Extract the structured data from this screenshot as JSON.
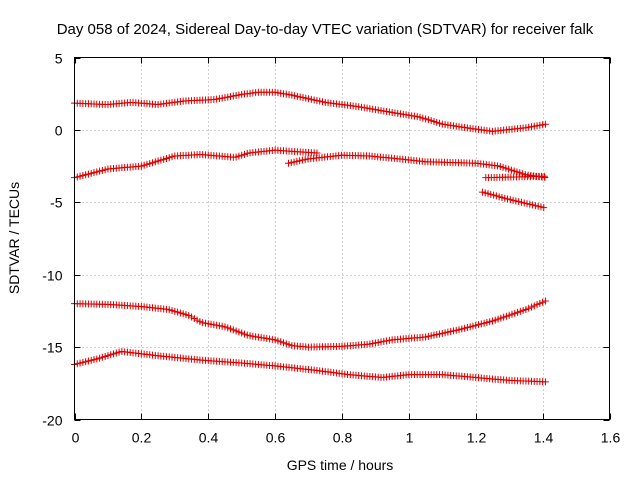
{
  "chart_data": {
    "type": "scatter",
    "title": "Day 058 of 2024, Sidereal Day-to-day VTEC variation (SDTVAR) for receiver falk",
    "xlabel": "GPS time / hours",
    "ylabel": "SDTVAR / TECUs",
    "xlim": [
      0,
      1.6
    ],
    "ylim": [
      -20,
      5
    ],
    "xticks": [
      0,
      0.2,
      0.4,
      0.6,
      0.8,
      1,
      1.2,
      1.4,
      1.6
    ],
    "xtick_labels": [
      "0",
      "0.2",
      "0.4",
      "0.6",
      "0.8",
      "1",
      "1.2",
      "1.4",
      "1.6"
    ],
    "yticks": [
      5,
      0,
      -5,
      -10,
      -15,
      -20
    ],
    "ytick_labels": [
      "5",
      "0",
      "-5",
      "-10",
      "-15",
      "-20"
    ],
    "grid": true,
    "marker": "plus",
    "marker_color": "#e00000",
    "series": [
      {
        "name": "track-1",
        "x_start": 0.0,
        "x_end": 1.41,
        "knots": [
          [
            0.0,
            1.85
          ],
          [
            0.1,
            1.75
          ],
          [
            0.17,
            1.9
          ],
          [
            0.25,
            1.75
          ],
          [
            0.33,
            2.0
          ],
          [
            0.42,
            2.1
          ],
          [
            0.5,
            2.45
          ],
          [
            0.55,
            2.6
          ],
          [
            0.6,
            2.6
          ],
          [
            0.65,
            2.4
          ],
          [
            0.75,
            1.9
          ],
          [
            0.85,
            1.6
          ],
          [
            0.95,
            1.2
          ],
          [
            1.03,
            0.9
          ],
          [
            1.1,
            0.4
          ],
          [
            1.2,
            0.05
          ],
          [
            1.25,
            -0.1
          ],
          [
            1.35,
            0.15
          ],
          [
            1.41,
            0.4
          ]
        ]
      },
      {
        "name": "track-2",
        "x_start": 0.0,
        "x_end": 0.73,
        "knots": [
          [
            0.0,
            -3.3
          ],
          [
            0.05,
            -3.0
          ],
          [
            0.1,
            -2.7
          ],
          [
            0.2,
            -2.5
          ],
          [
            0.3,
            -1.8
          ],
          [
            0.38,
            -1.7
          ],
          [
            0.48,
            -1.9
          ],
          [
            0.52,
            -1.6
          ],
          [
            0.6,
            -1.4
          ],
          [
            0.66,
            -1.5
          ],
          [
            0.73,
            -1.6
          ]
        ]
      },
      {
        "name": "track-3",
        "x_start": 0.64,
        "x_end": 1.41,
        "knots": [
          [
            0.64,
            -2.3
          ],
          [
            0.7,
            -2.0
          ],
          [
            0.8,
            -1.75
          ],
          [
            0.88,
            -1.8
          ],
          [
            0.97,
            -2.0
          ],
          [
            1.05,
            -2.2
          ],
          [
            1.12,
            -2.25
          ],
          [
            1.2,
            -2.3
          ],
          [
            1.27,
            -2.5
          ],
          [
            1.35,
            -3.1
          ],
          [
            1.41,
            -3.3
          ]
        ]
      },
      {
        "name": "track-4",
        "x_start": 1.23,
        "x_end": 1.41,
        "knots": [
          [
            1.23,
            -3.3
          ],
          [
            1.41,
            -3.2
          ]
        ]
      },
      {
        "name": "track-5",
        "x_start": 1.22,
        "x_end": 1.41,
        "knots": [
          [
            1.22,
            -4.3
          ],
          [
            1.3,
            -4.8
          ],
          [
            1.41,
            -5.4
          ]
        ]
      },
      {
        "name": "track-6",
        "x_start": 0.0,
        "x_end": 1.41,
        "knots": [
          [
            0.0,
            -12.0
          ],
          [
            0.1,
            -12.05
          ],
          [
            0.2,
            -12.2
          ],
          [
            0.28,
            -12.4
          ],
          [
            0.34,
            -12.8
          ],
          [
            0.38,
            -13.3
          ],
          [
            0.45,
            -13.6
          ],
          [
            0.52,
            -14.2
          ],
          [
            0.6,
            -14.5
          ],
          [
            0.65,
            -14.9
          ],
          [
            0.7,
            -15.0
          ],
          [
            0.8,
            -14.95
          ],
          [
            0.88,
            -14.8
          ],
          [
            0.95,
            -14.5
          ],
          [
            1.05,
            -14.3
          ],
          [
            1.15,
            -13.8
          ],
          [
            1.25,
            -13.2
          ],
          [
            1.35,
            -12.4
          ],
          [
            1.41,
            -11.8
          ]
        ]
      },
      {
        "name": "track-7",
        "x_start": 0.0,
        "x_end": 1.41,
        "knots": [
          [
            0.0,
            -16.2
          ],
          [
            0.07,
            -15.8
          ],
          [
            0.14,
            -15.3
          ],
          [
            0.25,
            -15.6
          ],
          [
            0.38,
            -15.9
          ],
          [
            0.5,
            -16.1
          ],
          [
            0.6,
            -16.3
          ],
          [
            0.72,
            -16.6
          ],
          [
            0.82,
            -16.9
          ],
          [
            0.92,
            -17.1
          ],
          [
            1.0,
            -16.9
          ],
          [
            1.1,
            -16.9
          ],
          [
            1.2,
            -17.1
          ],
          [
            1.3,
            -17.3
          ],
          [
            1.41,
            -17.4
          ]
        ]
      }
    ]
  }
}
